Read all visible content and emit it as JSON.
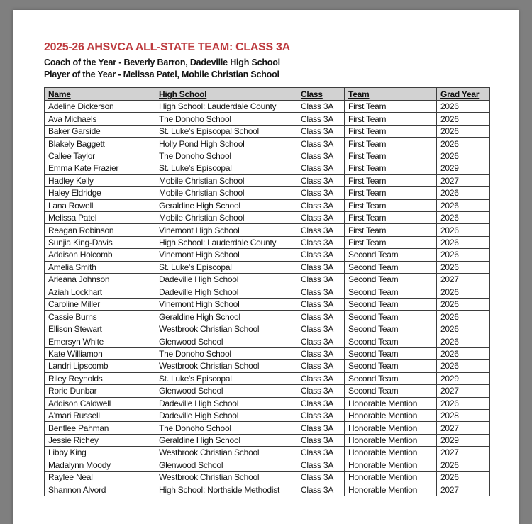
{
  "document": {
    "title": "2025-26 AHSVCA ALL-STATE TEAM: CLASS 3A",
    "coach_line": "Coach of the Year - Beverly Barron, Dadeville High School",
    "player_line": "Player of the Year - Melissa Patel, Mobile Christian School"
  },
  "colors": {
    "title_red": "#BE3C40",
    "header_row_bg": "#D2D2D2",
    "table_border": "#3D3D3D",
    "canvas_gray": "#7F7F7F"
  },
  "table": {
    "headers": [
      "Name",
      "High School",
      "Class",
      "Team",
      "Grad Year"
    ],
    "header_keys": [
      "name",
      "high-school",
      "class",
      "team",
      "grad-year"
    ],
    "rows": [
      [
        "Adeline Dickerson",
        "High School: Lauderdale County",
        "Class 3A",
        "First Team",
        "2026"
      ],
      [
        "Ava Michaels",
        "The Donoho School",
        "Class 3A",
        "First Team",
        "2026"
      ],
      [
        "Baker Garside",
        "St. Luke's Episcopal School",
        "Class 3A",
        "First Team",
        "2026"
      ],
      [
        "Blakely Baggett",
        "Holly Pond High School",
        "Class 3A",
        "First Team",
        "2026"
      ],
      [
        "Callee Taylor",
        "The Donoho School",
        "Class 3A",
        "First Team",
        "2026"
      ],
      [
        "Emma Kate Frazier",
        "St. Luke's Episcopal",
        "Class 3A",
        "First Team",
        "2029"
      ],
      [
        "Hadley Kelly",
        "Mobile Christian School",
        "Class 3A",
        "First Team",
        "2027"
      ],
      [
        "Haley Eldridge",
        "Mobile Christian School",
        "Class 3A",
        "First Team",
        "2026"
      ],
      [
        "Lana Rowell",
        "Geraldine High School",
        "Class 3A",
        "First Team",
        "2026"
      ],
      [
        "Melissa Patel",
        "Mobile Christian School",
        "Class 3A",
        "First Team",
        "2026"
      ],
      [
        "Reagan Robinson",
        "Vinemont High School",
        "Class 3A",
        "First Team",
        "2026"
      ],
      [
        "Sunjia King-Davis",
        "High School: Lauderdale County",
        "Class 3A",
        "First Team",
        "2026"
      ],
      [
        "Addison Holcomb",
        "Vinemont High School",
        "Class 3A",
        "Second Team",
        "2026"
      ],
      [
        "Amelia Smith",
        "St. Luke's Episcopal",
        "Class 3A",
        "Second Team",
        "2026"
      ],
      [
        "Arieana Johnson",
        "Dadeville High School",
        "Class 3A",
        "Second Team",
        "2027"
      ],
      [
        "Aziah Lockhart",
        "Dadeville High School",
        "Class 3A",
        "Second Team",
        "2026"
      ],
      [
        "Caroline Miller",
        "Vinemont High School",
        "Class 3A",
        "Second Team",
        "2026"
      ],
      [
        "Cassie Burns",
        "Geraldine High School",
        "Class 3A",
        "Second Team",
        "2026"
      ],
      [
        "Ellison Stewart",
        "Westbrook Christian School",
        "Class 3A",
        "Second Team",
        "2026"
      ],
      [
        "Emersyn White",
        "Glenwood School",
        "Class 3A",
        "Second Team",
        "2026"
      ],
      [
        "Kate Williamon",
        "The Donoho School",
        "Class 3A",
        "Second Team",
        "2026"
      ],
      [
        "Landri Lipscomb",
        "Westbrook Christian School",
        "Class 3A",
        "Second Team",
        "2026"
      ],
      [
        "Riley Reynolds",
        "St. Luke's Episcopal",
        "Class 3A",
        "Second Team",
        "2029"
      ],
      [
        "Rorie Dunbar",
        "Glenwood School",
        "Class 3A",
        "Second Team",
        "2027"
      ],
      [
        "Addison Caldwell",
        "Dadeville High School",
        "Class 3A",
        "Honorable Mention",
        "2026"
      ],
      [
        "A'mari Russell",
        "Dadeville High School",
        "Class 3A",
        "Honorable Mention",
        "2028"
      ],
      [
        "Bentlee Pahman",
        "The Donoho School",
        "Class 3A",
        "Honorable Mention",
        "2027"
      ],
      [
        "Jessie Richey",
        "Geraldine High School",
        "Class 3A",
        "Honorable Mention",
        "2029"
      ],
      [
        "Libby King",
        "Westbrook Christian School",
        "Class 3A",
        "Honorable Mention",
        "2027"
      ],
      [
        "Madalynn Moody",
        "Glenwood School",
        "Class 3A",
        "Honorable Mention",
        "2026"
      ],
      [
        "Raylee Neal",
        "Westbrook Christian School",
        "Class 3A",
        "Honorable Mention",
        "2026"
      ],
      [
        "Shannon Alvord",
        "High School: Northside Methodist",
        "Class 3A",
        "Honorable Mention",
        "2027"
      ]
    ]
  }
}
